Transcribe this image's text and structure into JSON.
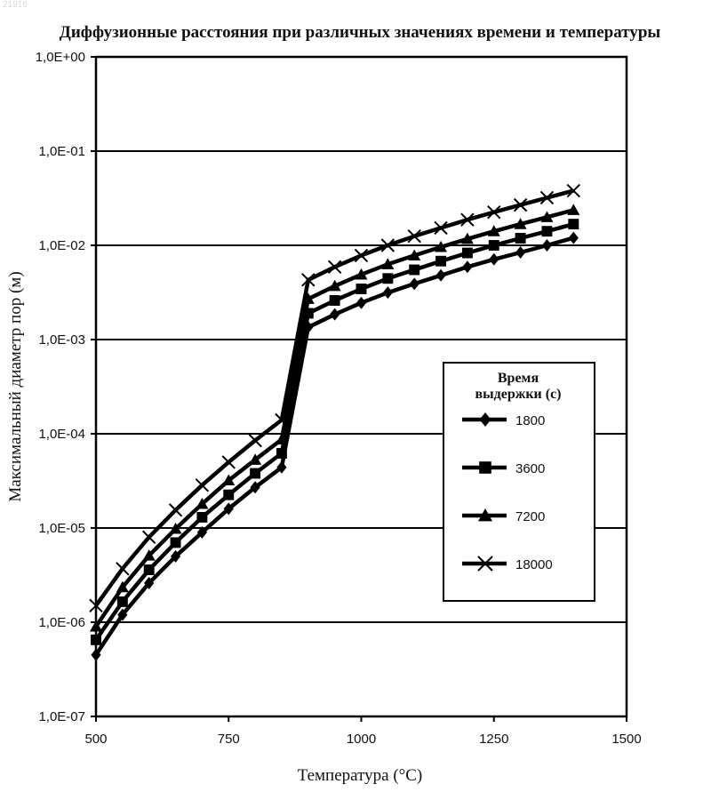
{
  "watermark": "21916",
  "chart_data": {
    "type": "line",
    "title": "Диффузионные расстояния при различных значениях времени и температуры",
    "xlabel": "Температура (°С)",
    "ylabel": "Максимальный диаметр пор (м)",
    "xlim": [
      500,
      1500
    ],
    "x_ticks": [
      500,
      750,
      1000,
      1250,
      1500
    ],
    "x_tick_labels": [
      "500",
      "750",
      "1000",
      "1250",
      "1500"
    ],
    "y_scale": "log",
    "ylim": [
      1e-07,
      1
    ],
    "y_ticks": [
      1e-07,
      1e-06,
      1e-05,
      0.0001,
      0.001,
      0.01,
      0.1,
      1
    ],
    "y_tick_labels": [
      "1,0E-07",
      "1,0E-06",
      "1,0E-05",
      "1,0E-04",
      "1,0E-03",
      "1,0E-02",
      "1,0E-01",
      "1,0E+00"
    ],
    "grid": "horizontal",
    "legend_position": "right-middle",
    "legend_title": [
      "Время",
      "выдержки (с)"
    ],
    "x": [
      500,
      550,
      600,
      650,
      700,
      750,
      800,
      850,
      900,
      950,
      1000,
      1050,
      1100,
      1150,
      1200,
      1250,
      1300,
      1350,
      1400
    ],
    "series": [
      {
        "name": "1800",
        "marker": "diamond",
        "values": [
          4.5e-07,
          1.2e-06,
          2.6e-06,
          5e-06,
          9e-06,
          1.6e-05,
          2.7e-05,
          4.4e-05,
          0.00135,
          0.00185,
          0.00245,
          0.00315,
          0.0039,
          0.0048,
          0.0059,
          0.0071,
          0.0084,
          0.01,
          0.012
        ]
      },
      {
        "name": "3600",
        "marker": "square",
        "values": [
          6.5e-07,
          1.65e-06,
          3.6e-06,
          7e-06,
          1.3e-05,
          2.25e-05,
          3.8e-05,
          6.2e-05,
          0.0019,
          0.0026,
          0.00345,
          0.00445,
          0.0055,
          0.0068,
          0.0083,
          0.01,
          0.0119,
          0.0141,
          0.0168
        ]
      },
      {
        "name": "7200",
        "marker": "triangle",
        "values": [
          9e-07,
          2.35e-06,
          5.1e-06,
          9.8e-06,
          1.8e-05,
          3.2e-05,
          5.3e-05,
          8.7e-05,
          0.0027,
          0.0037,
          0.0049,
          0.0063,
          0.0078,
          0.0096,
          0.0117,
          0.0141,
          0.0168,
          0.0199,
          0.0237
        ]
      },
      {
        "name": "18000",
        "marker": "x",
        "values": [
          1.5e-06,
          3.7e-06,
          8e-06,
          1.55e-05,
          2.85e-05,
          5e-05,
          8.5e-05,
          0.00014,
          0.0043,
          0.0059,
          0.0078,
          0.01,
          0.0125,
          0.0153,
          0.0187,
          0.0225,
          0.0268,
          0.032,
          0.038
        ]
      }
    ]
  }
}
